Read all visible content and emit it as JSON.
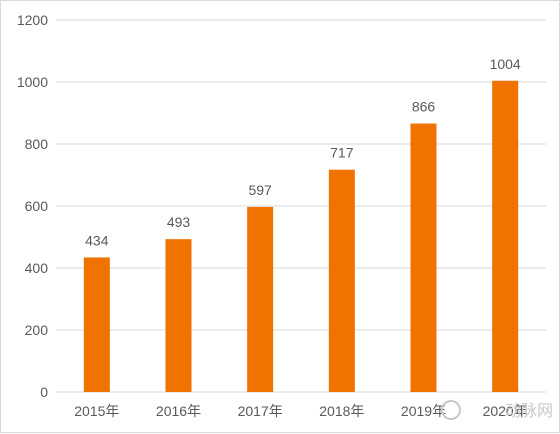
{
  "chart_data": {
    "type": "bar",
    "categories": [
      "2015年",
      "2016年",
      "2017年",
      "2018年",
      "2019年",
      "2020年"
    ],
    "values": [
      434,
      493,
      597,
      717,
      866,
      1004
    ],
    "title": "",
    "xlabel": "",
    "ylabel": "",
    "ylim": [
      0,
      1200
    ],
    "yticks": [
      0,
      200,
      400,
      600,
      800,
      1000,
      1200
    ],
    "grid": true,
    "legend": "none",
    "bar_color": "#F07200",
    "grid_color": "#d9d9d9"
  },
  "watermark": {
    "text": "动脉网",
    "icon": "logo-icon"
  }
}
